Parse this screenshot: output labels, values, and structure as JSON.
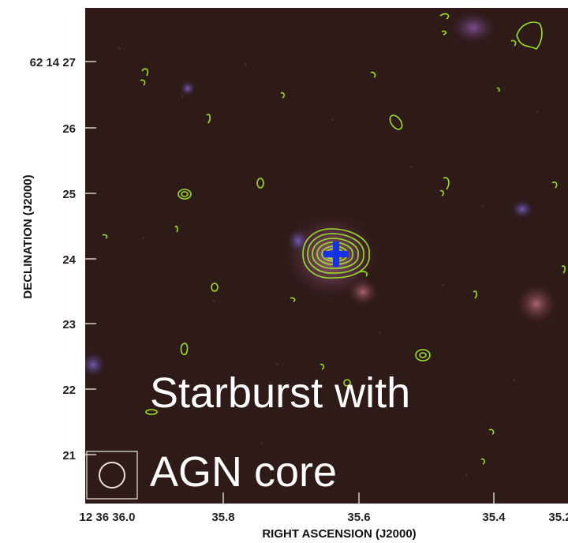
{
  "figure": {
    "overlay_line1": "Starburst with",
    "overlay_line2": "AGN core",
    "x_axis_title": "RIGHT ASCENSION (J2000)",
    "y_axis_title": "DECLINATION (J2000)",
    "x_tick_labels": [
      "12 36 36.0",
      "35.8",
      "35.6",
      "35.4",
      "35.2"
    ],
    "y_tick_labels": [
      "62 14 27",
      "26",
      "25",
      "24",
      "23",
      "22",
      "21"
    ]
  },
  "colors": {
    "background_image": "#2e1a17",
    "contours": "#9be02a",
    "marker": "#1433e6",
    "overlay_text": "#ffffff"
  },
  "icons": {
    "marker": "plus-marker-icon",
    "beam": "beam-ellipse-icon"
  }
}
